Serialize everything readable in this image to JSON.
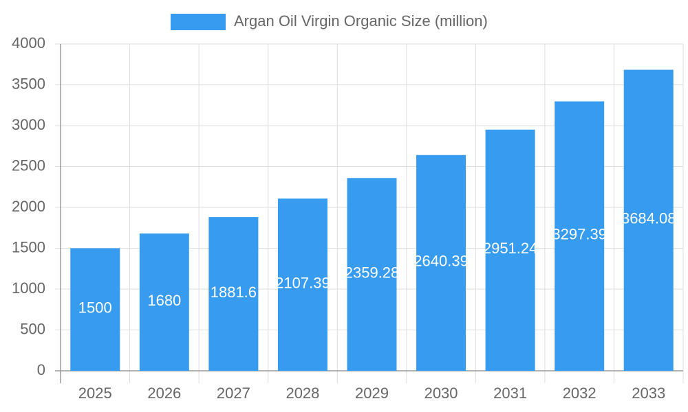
{
  "chart_data": {
    "type": "bar",
    "categories": [
      "2025",
      "2026",
      "2027",
      "2028",
      "2029",
      "2030",
      "2031",
      "2032",
      "2033"
    ],
    "series": [
      {
        "name": "Argan Oil Virgin Organic Size (million)",
        "color": "#379cf0",
        "values": [
          1500,
          1680,
          1881.6,
          2107.39,
          2359.28,
          2640.39,
          2951.24,
          3297.39,
          3684.08
        ]
      }
    ],
    "ylim": [
      0,
      4000
    ],
    "yticks": [
      0,
      500,
      1000,
      1500,
      2000,
      2500,
      3000,
      3500,
      4000
    ],
    "grid": true
  }
}
